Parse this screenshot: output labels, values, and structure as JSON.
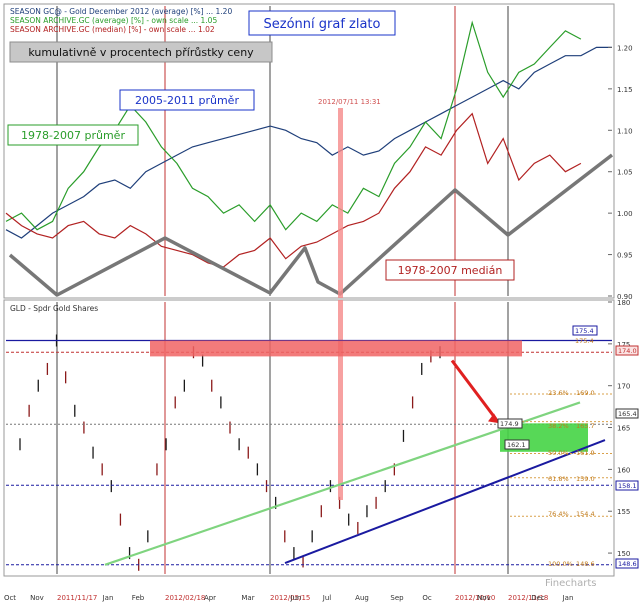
{
  "top_panel": {
    "legend": [
      {
        "text": "SEASON GC@ - Gold December 2012 (average) [%] ... 1.20",
        "color": "#1f3f7a"
      },
      {
        "text": "SEASON ARCHIVE.GC (average) [%] - own scale ... 1.05",
        "color": "#2a9d2a"
      },
      {
        "text": "SEASON ARCHIVE.GC (median) [%] - own scale ... 1.02",
        "color": "#b22222"
      }
    ],
    "title": "Sezónní graf zlato",
    "subtitle": "kumulativně v procentech přírůstky ceny",
    "label_2005": "2005-2011 průměr",
    "label_1978": "1978-2007 průměr",
    "label_median": "1978-2007 medián",
    "marker_date": "2012/07/11 13:31"
  },
  "bottom_panel": {
    "header": "GLD - Spdr Gold Shares",
    "tag_1754": "175.4",
    "tag_1749": "174.9",
    "tag_1621": "162.1",
    "level_174": "174.0",
    "level_1654": "165.4",
    "level_1581": "158.1",
    "level_1486": "148.6",
    "fib_236": "23.6%",
    "fib_382": "38.2%",
    "fib_500": "50.0%",
    "fib_618": "61.8%",
    "fib_764": "76.4%",
    "fib_1000": "100.0%",
    "fib_val_236": "169.0",
    "fib_val_382": "165.7",
    "fib_val_500": "161.9",
    "fib_val_618": "159.0",
    "fib_val_764": "154.4",
    "fib_val_1000": "148.6",
    "fib_val_0": "175.4"
  },
  "x_axis": {
    "labels": [
      "Oct",
      "Nov",
      "2011/11/17",
      "Jan",
      "Feb",
      "2012/02/18",
      "Apr",
      "Mar",
      "2012/05/15",
      "Jun",
      "Jul",
      "Aug",
      "Sep",
      "Oc",
      "2012/10/10",
      "Nov",
      "2012/11/18",
      "Dec",
      "Jan"
    ]
  },
  "watermark": "Finecharts",
  "colors": {
    "avg2005": "#1f3f7a",
    "avg1978": "#2a9d2a",
    "median": "#b22222",
    "title": "#1a33c8",
    "red_zone": "#f06464",
    "green_zone": "#45d445"
  },
  "chart_data": [
    {
      "type": "line",
      "title": "Sezónní graf zlato",
      "subtitle": "kumulativně v procentech přírůstky ceny",
      "y_ticks": [
        0.9,
        0.95,
        1.0,
        1.05,
        1.1,
        1.15,
        1.2
      ],
      "ylim": [
        0.9,
        1.25
      ],
      "series": [
        {
          "name": "2005-2011 průměr",
          "color": "#1f3f7a",
          "y": [
            0.98,
            0.97,
            0.985,
            1.0,
            1.01,
            1.02,
            1.035,
            1.04,
            1.03,
            1.05,
            1.06,
            1.07,
            1.08,
            1.085,
            1.09,
            1.095,
            1.1,
            1.105,
            1.1,
            1.09,
            1.085,
            1.07,
            1.08,
            1.07,
            1.075,
            1.09,
            1.1,
            1.11,
            1.12,
            1.13,
            1.14,
            1.15,
            1.16,
            1.15,
            1.17,
            1.18,
            1.19,
            1.19,
            1.2,
            1.2
          ]
        },
        {
          "name": "1978-2007 průměr",
          "color": "#2a9d2a",
          "y": [
            0.99,
            1.0,
            0.98,
            0.99,
            1.03,
            1.05,
            1.08,
            1.1,
            1.13,
            1.11,
            1.08,
            1.06,
            1.03,
            1.02,
            1.0,
            1.01,
            0.99,
            1.01,
            0.98,
            1.0,
            0.99,
            1.01,
            1.0,
            1.03,
            1.02,
            1.06,
            1.08,
            1.11,
            1.09,
            1.15,
            1.23,
            1.17,
            1.14,
            1.17,
            1.18,
            1.2,
            1.22,
            1.21,
            null,
            null
          ]
        },
        {
          "name": "1978-2007 medián",
          "color": "#b22222",
          "y": [
            1.0,
            0.985,
            0.975,
            0.97,
            0.985,
            0.99,
            0.975,
            0.97,
            0.985,
            0.975,
            0.96,
            0.955,
            0.95,
            0.94,
            0.935,
            0.95,
            0.955,
            0.97,
            0.945,
            0.96,
            0.965,
            0.975,
            0.985,
            0.99,
            1.0,
            1.03,
            1.05,
            1.08,
            1.07,
            1.1,
            1.12,
            1.06,
            1.09,
            1.04,
            1.06,
            1.07,
            1.05,
            1.06,
            null,
            null
          ]
        }
      ]
    },
    {
      "type": "line",
      "title": "GLD - Spdr Gold Shares",
      "y_ticks": [
        150,
        155,
        160,
        165,
        170,
        175,
        180
      ],
      "ylim": [
        147.5,
        180
      ],
      "series": [
        {
          "name": "GLD - Spdr Gold Shares",
          "y": [
            163,
            167,
            170,
            172,
            175.4,
            171,
            167,
            165,
            162,
            160,
            158,
            154,
            150,
            148.6,
            152,
            160,
            163,
            168,
            170,
            174,
            173,
            170,
            168,
            165,
            163,
            162,
            160,
            158,
            156,
            152,
            150,
            149,
            152,
            155,
            158,
            156,
            154,
            153,
            155,
            156,
            158,
            160,
            164,
            168,
            172,
            173.5,
            174
          ]
        }
      ]
    }
  ]
}
